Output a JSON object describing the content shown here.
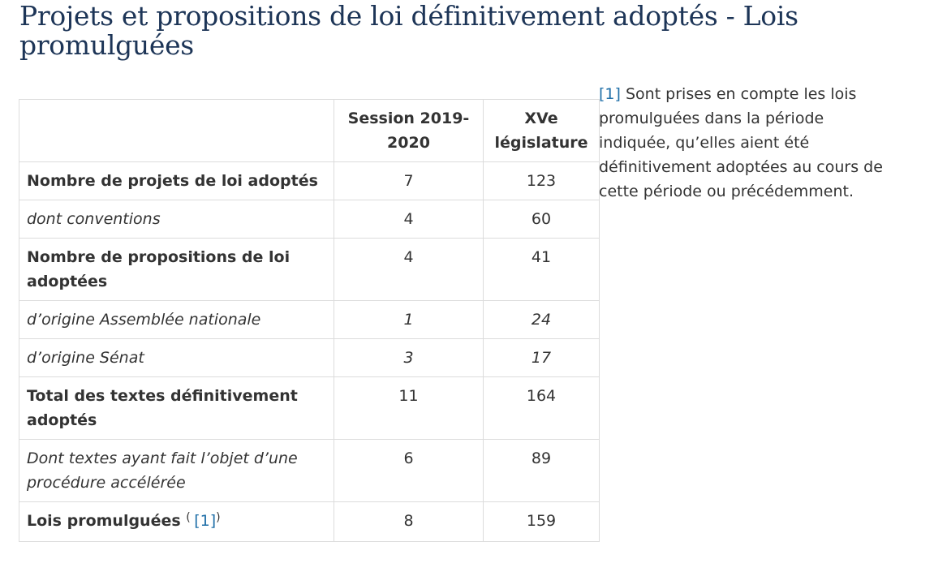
{
  "title": "Projets et propositions de loi définitivement adoptés - Lois promulguées",
  "table": {
    "headers": {
      "label": "",
      "session": "Session 2019-2020",
      "legislature": "XVe législature"
    },
    "rows": [
      {
        "label": "Nombre de projets de loi adoptés",
        "session": "7",
        "legislature": "123"
      },
      {
        "label": "dont conventions",
        "session": "4",
        "legislature": "60"
      },
      {
        "label": "Nombre de propositions de loi adoptées",
        "session": "4",
        "legislature": "41"
      },
      {
        "label": "d’origine Assemblée nationale",
        "session": "1",
        "legislature": "24"
      },
      {
        "label": "d’origine Sénat",
        "session": "3",
        "legislature": "17"
      },
      {
        "label": "Total des textes définitivement adoptés",
        "session": "11",
        "legislature": "164"
      },
      {
        "label": "Dont textes ayant fait l’objet d’une procédure accélérée",
        "session": "6",
        "legislature": "89"
      },
      {
        "label": "Lois promulguées",
        "session": "8",
        "legislature": "159",
        "ref_open": "(",
        "ref": "[1]",
        "ref_close": ")"
      }
    ]
  },
  "footnote": {
    "ref": "[1]",
    "text": " Sont prises en compte les lois promulguées dans la période indiquée, qu’elles aient été définitivement adoptées au cours de cette période ou précédemment."
  },
  "colors": {
    "title": "#1d3557",
    "link": "#1f6fa8",
    "text": "#333333",
    "border": "#dcdcdc"
  }
}
